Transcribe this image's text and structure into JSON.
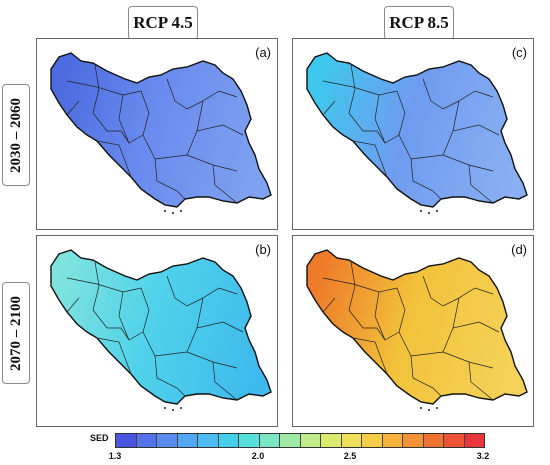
{
  "columns": [
    "RCP 4.5",
    "RCP 8.5"
  ],
  "rows": [
    "2030 – 2060",
    "2070 – 2100"
  ],
  "panels": [
    {
      "label": "(a)",
      "scenario": "RCP 4.5",
      "period": "2030 – 2060",
      "base": "#6a8bee",
      "accent": "#4c6be0",
      "shade": "#7fa2f0"
    },
    {
      "label": "(c)",
      "scenario": "RCP 8.5",
      "period": "2030 – 2060",
      "base": "#6f9cf0",
      "accent": "#3fc8ee",
      "shade": "#8ab0f2"
    },
    {
      "label": "(b)",
      "scenario": "RCP 4.5",
      "period": "2070 – 2100",
      "base": "#4fd2ea",
      "accent": "#7fe3de",
      "shade": "#3fb9ee"
    },
    {
      "label": "(d)",
      "scenario": "RCP 8.5",
      "period": "2070 – 2100",
      "base": "#f2c23a",
      "accent": "#ee7a2a",
      "shade": "#f5d35a"
    }
  ],
  "colorbar": {
    "title": "SED",
    "ticks": [
      "1.3",
      "2.0",
      "2.5",
      "3.2"
    ],
    "colors": [
      "#4a56e0",
      "#5472ea",
      "#5a8cf0",
      "#52a6f2",
      "#4cbcf0",
      "#44d0ea",
      "#56e0dc",
      "#7ae6c2",
      "#9eeaa6",
      "#c0ec8a",
      "#dcea6e",
      "#efe05a",
      "#f6cc48",
      "#f7b23e",
      "#f49236",
      "#f07232",
      "#ec5234",
      "#e8363a"
    ]
  }
}
